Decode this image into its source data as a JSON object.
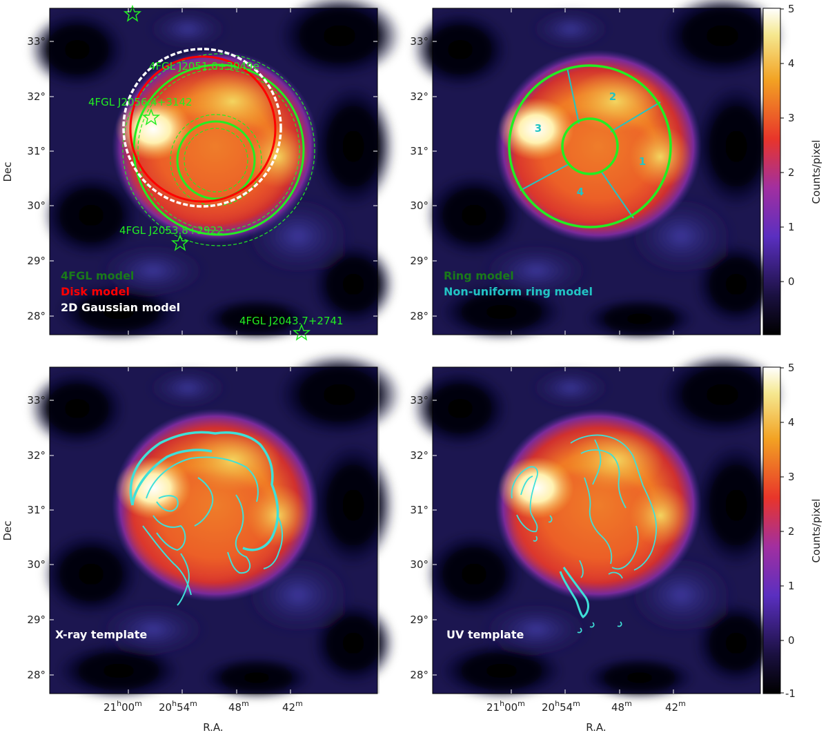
{
  "panels": [
    {
      "id": "top-left",
      "legend": [
        {
          "text": "4FGL model",
          "color": "#1a7a1a"
        },
        {
          "text": "Disk model",
          "color": "#ff0000"
        },
        {
          "text": "2D Gaussian model",
          "color": "#ffffff"
        }
      ],
      "sources": [
        {
          "text": "4FGL J2051.0+3049e"
        },
        {
          "text": "4FGL J2056.4+3142"
        },
        {
          "text": "4FGL J2053.8+2922"
        },
        {
          "text": "4FGL J2043.7+2741"
        }
      ]
    },
    {
      "id": "top-right",
      "legend": [
        {
          "text": "Ring model",
          "color": "#1a7a1a"
        },
        {
          "text": "Non-uniform ring model",
          "color": "#22c4c4"
        }
      ],
      "segments": [
        "1",
        "2",
        "3",
        "4"
      ]
    },
    {
      "id": "bottom-left",
      "template_label": "X-ray template"
    },
    {
      "id": "bottom-right",
      "template_label": "UV template"
    }
  ],
  "axes": {
    "ylabel": "Dec",
    "xlabel": "R.A.",
    "dec_ticks": [
      "33°",
      "32°",
      "31°",
      "30°",
      "29°",
      "28°"
    ],
    "ra_ticks": [
      {
        "h": "21",
        "hsup": "h",
        "m": "00",
        "msup": "m"
      },
      {
        "h": "20",
        "hsup": "h",
        "m": "54",
        "msup": "m"
      },
      {
        "h": "",
        "hsup": "",
        "m": "48",
        "msup": "m"
      },
      {
        "h": "",
        "hsup": "",
        "m": "42",
        "msup": "m"
      }
    ]
  },
  "colorbar": {
    "label": "Counts/pixel",
    "ticks": [
      "5",
      "4",
      "3",
      "2",
      "1",
      "0",
      "-1"
    ],
    "range": [
      -1,
      5
    ]
  },
  "colors": {
    "green": "#22ee22",
    "cyan": "#22c4c4",
    "contour_cyan": "#3fe0d8"
  }
}
